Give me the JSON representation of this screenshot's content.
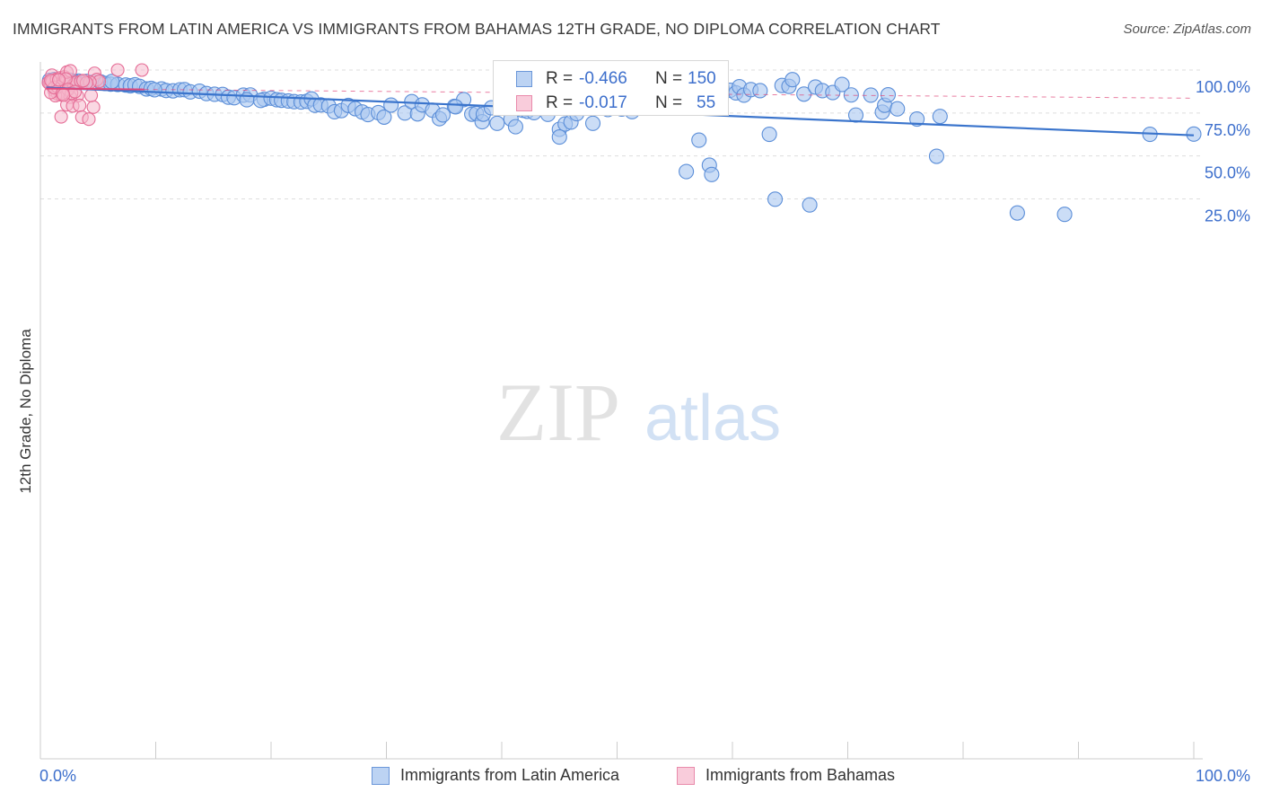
{
  "title": "IMMIGRANTS FROM LATIN AMERICA VS IMMIGRANTS FROM BAHAMAS 12TH GRADE, NO DIPLOMA CORRELATION CHART",
  "source": "Source: ZipAtlas.com",
  "watermark": {
    "zip": "ZIP",
    "atlas": "atlas"
  },
  "legend_top": {
    "rows": [
      {
        "r_label": "R =",
        "r_value": "-0.466",
        "n_label": "N =",
        "n_value": "150"
      },
      {
        "r_label": "R =",
        "r_value": "-0.017",
        "n_label": "N =",
        "n_value": "55"
      }
    ]
  },
  "legend_bottom": {
    "items": [
      {
        "label": "Immigrants from Latin America"
      },
      {
        "label": "Immigrants from Bahamas"
      }
    ]
  },
  "colors": {
    "blue_fill": "#a9c6f0",
    "blue_stroke": "#5b8ed8",
    "blue_line": "#3a74cc",
    "pink_fill": "#f6b8cc",
    "pink_stroke": "#e56d96",
    "pink_line": "#e0487a",
    "axis_label": "#3d6fcc",
    "grid": "#dddddd"
  },
  "chart_data": {
    "type": "scatter",
    "xlabel": "",
    "ylabel": "12th Grade, No Diploma",
    "xlim": [
      0,
      100
    ],
    "ylim": [
      0,
      101
    ],
    "x_tick_labels": [
      {
        "value": 0,
        "label": "0.0%"
      },
      {
        "value": 100,
        "label": "100.0%"
      }
    ],
    "y_tick_labels": [
      {
        "value": 100,
        "label": "100.0%"
      },
      {
        "value": 75,
        "label": "75.0%"
      },
      {
        "value": 50,
        "label": "50.0%"
      },
      {
        "value": 25,
        "label": "25.0%"
      }
    ],
    "grid": "dashed horizontal",
    "series": [
      {
        "name": "Immigrants from Latin America",
        "trend": {
          "x0": 0.5,
          "y0": 89.8,
          "x1": 100,
          "y1": 62.0
        },
        "points": [
          [
            0.8,
            94
          ],
          [
            1.2,
            94.5
          ],
          [
            1.5,
            93.5
          ],
          [
            1.8,
            93.8
          ],
          [
            2.2,
            94.2
          ],
          [
            2.6,
            94.1
          ],
          [
            2.9,
            93.4
          ],
          [
            3.3,
            93.6
          ],
          [
            3.7,
            93.2
          ],
          [
            4.0,
            93.4
          ],
          [
            4.6,
            93.0
          ],
          [
            5.2,
            93.1
          ],
          [
            5.6,
            92.2
          ],
          [
            6.1,
            91.8
          ],
          [
            6.7,
            91.6
          ],
          [
            7.4,
            91.3
          ],
          [
            7.8,
            90.8
          ],
          [
            8.2,
            91.4
          ],
          [
            8.6,
            90.5
          ],
          [
            9.2,
            89.0
          ],
          [
            9.6,
            89.3
          ],
          [
            10.5,
            89.0
          ],
          [
            10.9,
            88.1
          ],
          [
            11.5,
            87.9
          ],
          [
            12.1,
            88.5
          ],
          [
            12.5,
            88.6
          ],
          [
            13.0,
            87.3
          ],
          [
            13.8,
            87.7
          ],
          [
            14.4,
            86.3
          ],
          [
            15.1,
            85.9
          ],
          [
            15.8,
            85.8
          ],
          [
            16.3,
            84.2
          ],
          [
            16.8,
            83.9
          ],
          [
            17.6,
            85.4
          ],
          [
            18.2,
            85.5
          ],
          [
            17.9,
            82.7
          ],
          [
            19.4,
            83.0
          ],
          [
            19.1,
            82.3
          ],
          [
            20.0,
            83.6
          ],
          [
            20.5,
            82.7
          ],
          [
            20.9,
            82.4
          ],
          [
            21.5,
            82.0
          ],
          [
            22.0,
            81.6
          ],
          [
            22.6,
            81.4
          ],
          [
            23.1,
            81.8
          ],
          [
            23.5,
            83.2
          ],
          [
            23.8,
            79.5
          ],
          [
            24.3,
            79.7
          ],
          [
            25.0,
            79.1
          ],
          [
            25.5,
            75.7
          ],
          [
            26.1,
            76.4
          ],
          [
            26.7,
            79.4
          ],
          [
            27.3,
            77.5
          ],
          [
            27.9,
            75.6
          ],
          [
            28.4,
            74.1
          ],
          [
            29.3,
            75.2
          ],
          [
            29.8,
            72.6
          ],
          [
            30.4,
            79.6
          ],
          [
            31.6,
            75.0
          ],
          [
            32.2,
            81.6
          ],
          [
            32.7,
            74.5
          ],
          [
            33.1,
            79.7
          ],
          [
            34.0,
            76.6
          ],
          [
            34.6,
            71.7
          ],
          [
            34.9,
            73.9
          ],
          [
            35.9,
            78.9
          ],
          [
            36.7,
            82.8
          ],
          [
            37.4,
            74.3
          ],
          [
            37.8,
            74.7
          ],
          [
            38.3,
            69.9
          ],
          [
            38.4,
            74.3
          ],
          [
            39.1,
            78.0
          ],
          [
            39.6,
            69.0
          ],
          [
            40.2,
            79.7
          ],
          [
            40.8,
            71.5
          ],
          [
            41.2,
            67.0
          ],
          [
            41.8,
            76.6
          ],
          [
            42.2,
            76.0
          ],
          [
            42.8,
            75.2
          ],
          [
            43.4,
            78.8
          ],
          [
            44.0,
            74.2
          ],
          [
            44.1,
            85.6
          ],
          [
            45.0,
            65.5
          ],
          [
            45.5,
            68.6
          ],
          [
            46.0,
            69.7
          ],
          [
            46.5,
            74.6
          ],
          [
            46.8,
            84.8
          ],
          [
            47.2,
            90.4
          ],
          [
            47.9,
            69.0
          ],
          [
            48.5,
            83.8
          ],
          [
            49.2,
            77.0
          ],
          [
            49.4,
            89.6
          ],
          [
            50.4,
            77.3
          ],
          [
            50.9,
            81.9
          ],
          [
            51.3,
            75.8
          ],
          [
            51.8,
            80.2
          ],
          [
            52.7,
            83.5
          ],
          [
            52.8,
            87.3
          ],
          [
            53.4,
            83.5
          ],
          [
            54.6,
            94.8
          ],
          [
            54.9,
            82.3
          ],
          [
            55.4,
            80.3
          ],
          [
            55.9,
            78.3
          ],
          [
            56.4,
            80.3
          ],
          [
            56.8,
            89.4
          ],
          [
            57.3,
            89.3
          ],
          [
            58.1,
            87.3
          ],
          [
            59.1,
            89.4
          ],
          [
            59.8,
            88.2
          ],
          [
            60.3,
            86.7
          ],
          [
            60.6,
            90.3
          ],
          [
            61.0,
            85.4
          ],
          [
            61.6,
            88.6
          ],
          [
            62.4,
            88.0
          ],
          [
            63.2,
            62.6
          ],
          [
            64.3,
            91.0
          ],
          [
            64.9,
            90.5
          ],
          [
            65.2,
            94.4
          ],
          [
            66.2,
            86.0
          ],
          [
            67.2,
            90.1
          ],
          [
            67.8,
            88.0
          ],
          [
            68.7,
            86.9
          ],
          [
            69.5,
            91.6
          ],
          [
            70.3,
            85.5
          ],
          [
            70.7,
            73.8
          ],
          [
            72.0,
            85.4
          ],
          [
            73.0,
            75.5
          ],
          [
            73.2,
            79.5
          ],
          [
            73.5,
            85.6
          ],
          [
            74.3,
            77.4
          ],
          [
            76.0,
            71.5
          ],
          [
            78.0,
            73.0
          ],
          [
            45.0,
            61.0
          ],
          [
            57.1,
            59.2
          ],
          [
            77.7,
            49.8
          ],
          [
            58.0,
            44.6
          ],
          [
            56.0,
            40.9
          ],
          [
            58.2,
            39.2
          ],
          [
            63.7,
            24.8
          ],
          [
            66.7,
            21.5
          ],
          [
            84.7,
            16.8
          ],
          [
            88.8,
            16.0
          ],
          [
            96.2,
            62.6
          ],
          [
            100,
            62.7
          ],
          [
            6.2,
            93.3
          ],
          [
            3.1,
            92.9
          ],
          [
            9.9,
            88.5
          ],
          [
            44.5,
            88.3
          ],
          [
            52.6,
            77.8
          ],
          [
            36.0,
            78.6
          ]
        ]
      },
      {
        "name": "Immigrants from Bahamas",
        "trend": {
          "x0": 0.5,
          "y0": 89.2,
          "x1": 100,
          "y1": 83.6
        },
        "points": [
          [
            1.0,
            97.0
          ],
          [
            1.3,
            93.9
          ],
          [
            1.7,
            91.9
          ],
          [
            0.8,
            92.1
          ],
          [
            0.9,
            91.4
          ],
          [
            1.1,
            90.5
          ],
          [
            1.4,
            90.7
          ],
          [
            1.9,
            92.2
          ],
          [
            0.7,
            92.7
          ],
          [
            1.2,
            88.0
          ],
          [
            1.6,
            87.5
          ],
          [
            2.0,
            87.6
          ],
          [
            1.5,
            86.0
          ],
          [
            1.8,
            85.6
          ],
          [
            1.3,
            85.1
          ],
          [
            0.9,
            86.9
          ],
          [
            1.0,
            93.3
          ],
          [
            1.4,
            94.7
          ],
          [
            1.7,
            95.4
          ],
          [
            2.1,
            96.0
          ],
          [
            2.3,
            94.0
          ],
          [
            2.5,
            92.2
          ],
          [
            2.9,
            91.6
          ],
          [
            3.1,
            92.8
          ],
          [
            3.5,
            93.4
          ],
          [
            3.2,
            85.0
          ],
          [
            2.6,
            84.2
          ],
          [
            2.3,
            79.8
          ],
          [
            2.8,
            79.1
          ],
          [
            3.4,
            79.4
          ],
          [
            4.6,
            78.4
          ],
          [
            1.8,
            72.8
          ],
          [
            3.6,
            72.6
          ],
          [
            4.2,
            71.4
          ],
          [
            2.3,
            98.8
          ],
          [
            2.6,
            99.5
          ],
          [
            4.7,
            98.1
          ],
          [
            6.7,
            100
          ],
          [
            8.8,
            100
          ],
          [
            2.2,
            94.8
          ],
          [
            4.9,
            94.5
          ],
          [
            5.1,
            93.4
          ],
          [
            4.3,
            92.9
          ],
          [
            4.0,
            92.5
          ],
          [
            3.7,
            93.8
          ],
          [
            1.5,
            90.2
          ],
          [
            1.2,
            89.8
          ],
          [
            2.4,
            88.7
          ],
          [
            2.7,
            86.5
          ],
          [
            1.9,
            86.3
          ],
          [
            3.0,
            87.4
          ],
          [
            0.9,
            93.9
          ],
          [
            1.6,
            94.3
          ],
          [
            2.0,
            85.5
          ],
          [
            4.4,
            85.2
          ]
        ]
      }
    ]
  }
}
